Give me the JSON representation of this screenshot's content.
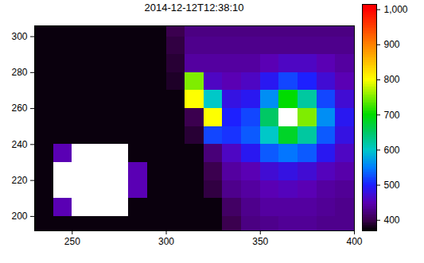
{
  "chart_data": {
    "type": "heatmap",
    "title": "2014-12-12T12:38:10",
    "xlim": [
      230,
      400
    ],
    "ylim": [
      192,
      306
    ],
    "xticks": [
      250,
      300,
      350,
      400
    ],
    "yticks": [
      200,
      220,
      240,
      260,
      280,
      300
    ],
    "x_edges": [
      230,
      240,
      250,
      260,
      270,
      280,
      290,
      300,
      310,
      320,
      330,
      340,
      350,
      360,
      370,
      380,
      390,
      400
    ],
    "y_edges": [
      192,
      200,
      210,
      220,
      230,
      240,
      250,
      260,
      270,
      280,
      290,
      300,
      306
    ],
    "values": [
      [
        375,
        375,
        375,
        375,
        375,
        375,
        375,
        375,
        375,
        375,
        400,
        425,
        430,
        435,
        435,
        430,
        430
      ],
      [
        375,
        450,
        1100,
        1100,
        1100,
        375,
        375,
        375,
        375,
        375,
        410,
        430,
        440,
        440,
        440,
        435,
        430
      ],
      [
        375,
        1100,
        1100,
        1100,
        1100,
        450,
        375,
        375,
        375,
        395,
        430,
        440,
        450,
        455,
        450,
        440,
        435
      ],
      [
        375,
        1100,
        1100,
        1100,
        1100,
        450,
        375,
        375,
        375,
        400,
        440,
        450,
        470,
        480,
        470,
        455,
        445
      ],
      [
        375,
        450,
        1100,
        1100,
        1100,
        375,
        375,
        375,
        375,
        420,
        460,
        490,
        530,
        545,
        530,
        490,
        460
      ],
      [
        375,
        375,
        375,
        375,
        375,
        375,
        375,
        375,
        390,
        520,
        510,
        530,
        600,
        680,
        620,
        530,
        480
      ],
      [
        375,
        375,
        375,
        375,
        375,
        375,
        375,
        375,
        400,
        800,
        500,
        520,
        650,
        1100,
        750,
        560,
        490
      ],
      [
        375,
        375,
        375,
        375,
        375,
        375,
        375,
        375,
        800,
        600,
        480,
        490,
        560,
        700,
        620,
        520,
        470
      ],
      [
        375,
        375,
        375,
        375,
        375,
        375,
        375,
        385,
        750,
        460,
        450,
        460,
        490,
        520,
        500,
        470,
        450
      ],
      [
        375,
        375,
        375,
        375,
        375,
        375,
        375,
        390,
        440,
        440,
        440,
        440,
        450,
        460,
        460,
        450,
        440
      ],
      [
        375,
        375,
        375,
        375,
        375,
        375,
        375,
        395,
        430,
        430,
        430,
        430,
        430,
        430,
        430,
        430,
        430
      ],
      [
        375,
        375,
        375,
        375,
        375,
        375,
        375,
        400,
        425,
        425,
        425,
        425,
        425,
        425,
        425,
        425,
        425
      ]
    ],
    "color_range": [
      370,
      1015
    ],
    "color_ticks": [
      400,
      500,
      600,
      700,
      800,
      900,
      1000
    ]
  }
}
